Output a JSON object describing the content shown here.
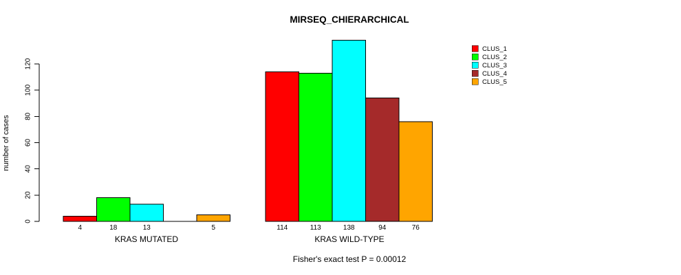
{
  "chart_data": {
    "type": "bar",
    "title": "MIRSEQ_CHIERARCHICAL",
    "ylabel": "number of cases",
    "xlabel": "",
    "annotation": "Fisher's exact test P = 0.00012",
    "groups": [
      "KRAS MUTATED",
      "KRAS WILD-TYPE"
    ],
    "series": [
      {
        "name": "CLUS_1",
        "color": "#FF0000",
        "values": [
          4,
          114
        ]
      },
      {
        "name": "CLUS_2",
        "color": "#00FF00",
        "values": [
          18,
          113
        ]
      },
      {
        "name": "CLUS_3",
        "color": "#00FFFF",
        "values": [
          13,
          138
        ]
      },
      {
        "name": "CLUS_4",
        "color": "#A52A2A",
        "values": [
          0,
          94
        ]
      },
      {
        "name": "CLUS_5",
        "color": "#FFA500",
        "values": [
          5,
          76
        ]
      }
    ],
    "bar_value_labels": {
      "KRAS MUTATED": [
        "4",
        "18",
        "13",
        "",
        "5"
      ],
      "KRAS WILD-TYPE": [
        "114",
        "113",
        "138",
        "94",
        "76"
      ]
    },
    "yticks": [
      0,
      20,
      40,
      60,
      80,
      100,
      120
    ],
    "ylim": [
      0,
      138
    ],
    "grid": false,
    "legend_position": "right",
    "axis_color": "#000000",
    "bar_border_color": "#000000",
    "background_color": "#FFFFFF"
  }
}
